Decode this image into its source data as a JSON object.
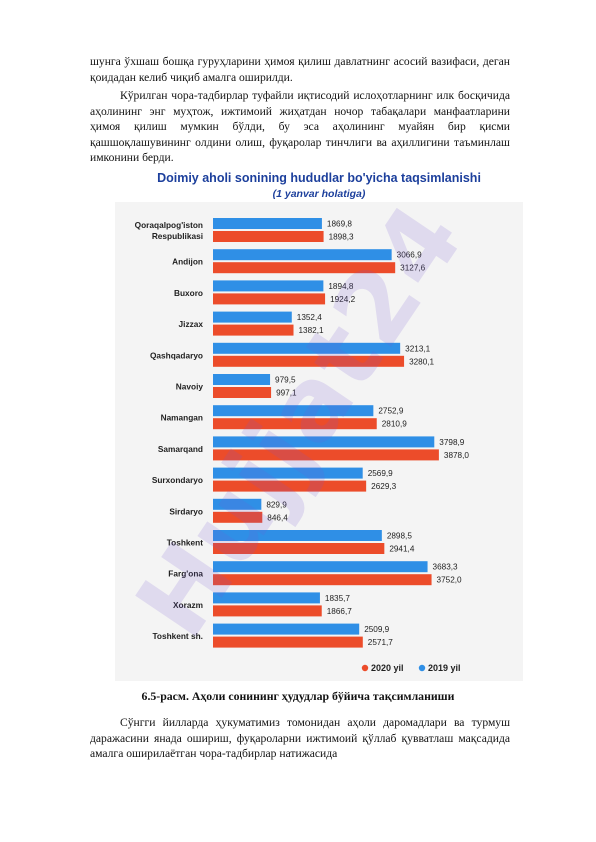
{
  "paragraphs": {
    "p1": "шунга ўхшаш бошқа гуруҳларини ҳимоя қилиш давлатнинг асосий вазифаси, деган қоидадан келиб чиқиб амалга оширилди.",
    "p2": "Кўрилган чора-тадбирлар туфайли иқтисодий ислоҳотларнинг илк босқичида аҳолининг энг муҳтож, ижтимоий жиҳатдан ночор табақалари манфаатларини ҳимоя қилиш мумкин бўлди, бу эса аҳолининг муайян бир қисми қашшоқлашувининг олдини олиш, фуқаролар тинчлиги ва аҳиллигини таъминлаш имконини берди.",
    "p3": "Сўнгги йилларда ҳукуматимиз томонидан аҳоли даромадлари ва турмуш даражасини янада ошириш, фуқароларни ижтимоий қўллаб қувватлаш мақсадида амалга оширилаётган чора-тадбирлар натижасида"
  },
  "caption": "6.5-расм. Аҳоли сонининг ҳудудлар бўйича тақсимланиши",
  "watermark": "Hujjat24",
  "chart_data": {
    "type": "bar",
    "orientation": "horizontal",
    "title": "Doimiy aholi sonining hududlar bo'yicha taqsimlanishi",
    "subtitle": "(1 yanvar holatiga)",
    "categories": [
      [
        "Qoraqalpog'iston",
        "Respublikasi"
      ],
      [
        "Andijon"
      ],
      [
        "Buxoro"
      ],
      [
        "Jizzax"
      ],
      [
        "Qashqadaryo"
      ],
      [
        "Navoiy"
      ],
      [
        "Namangan"
      ],
      [
        "Samarqand"
      ],
      [
        "Surxondaryo"
      ],
      [
        "Sirdaryo"
      ],
      [
        "Toshkent"
      ],
      [
        "Farg'ona"
      ],
      [
        "Xorazm"
      ],
      [
        "Toshkent sh."
      ]
    ],
    "series": [
      {
        "name": "2019 yil",
        "color": "#2f8fe6",
        "values": [
          1869.8,
          3066.9,
          1894.8,
          1352.4,
          3213.1,
          979.5,
          2752.9,
          3798.9,
          2569.9,
          829.9,
          2898.5,
          3683.3,
          1835.7,
          2509.9
        ],
        "labels": [
          "1869,8",
          "3066,9",
          "1894,8",
          "1352,4",
          "3213,1",
          "979,5",
          "2752,9",
          "3798,9",
          "2569,9",
          "829,9",
          "2898,5",
          "3683,3",
          "1835,7",
          "2509,9"
        ]
      },
      {
        "name": "2020 yil",
        "color": "#ec4c2a",
        "values": [
          1898.3,
          3127.6,
          1924.2,
          1382.1,
          3280.1,
          997.1,
          2810.9,
          3878.0,
          2629.3,
          846.4,
          2941.4,
          3752.0,
          1866.7,
          2571.7
        ],
        "labels": [
          "1898,3",
          "3127,6",
          "1924,2",
          "1382,1",
          "3280,1",
          "997,1",
          "2810,9",
          "3878,0",
          "2629,3",
          "846,4",
          "2941,4",
          "3752,0",
          "1866,7",
          "2571,7"
        ]
      }
    ],
    "legend_order": [
      "2020 yil",
      "2019 yil"
    ],
    "legend_position": "bottom-right",
    "xlim": [
      0,
      4000
    ],
    "colors": {
      "title": "#1c3f9c",
      "background": "#f4f4f4",
      "label": "#222222"
    }
  }
}
